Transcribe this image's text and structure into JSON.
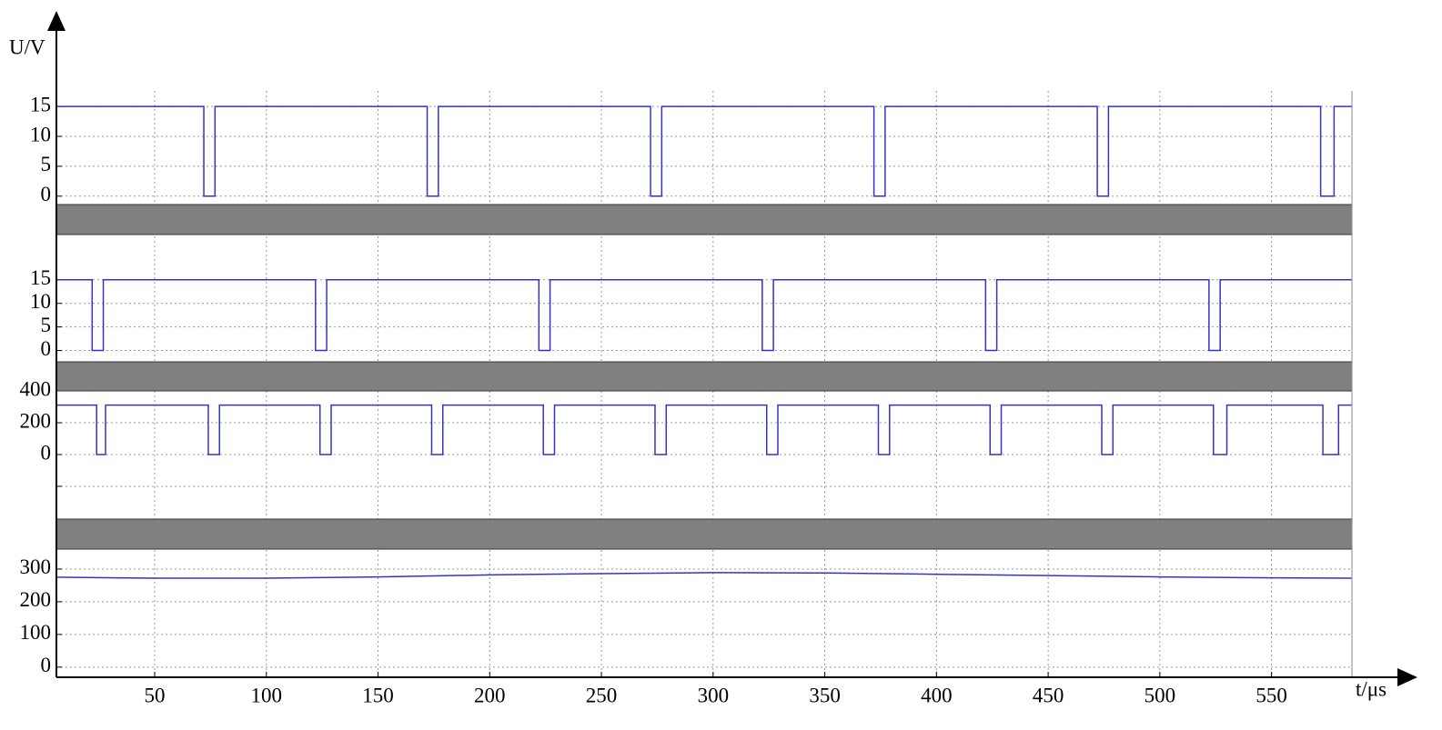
{
  "chart_data": [
    {
      "type": "line",
      "ylabel": "U/V",
      "color": "#3333cc",
      "grid": true,
      "xlim": [
        6,
        586
      ],
      "ylim": [
        -1.4,
        17.6
      ],
      "yticks": [
        0,
        5,
        10,
        15
      ],
      "x": [
        6,
        72,
        72,
        77,
        77,
        172,
        172,
        177,
        177,
        272,
        272,
        277,
        277,
        372,
        372,
        377,
        377,
        472,
        472,
        477,
        477,
        572,
        572,
        578,
        578,
        586
      ],
      "values": [
        15,
        15,
        0,
        0,
        15,
        15,
        0,
        0,
        15,
        15,
        0,
        0,
        15,
        15,
        0,
        0,
        15,
        15,
        0,
        0,
        15,
        15,
        0,
        0,
        15,
        15
      ]
    },
    {
      "type": "line",
      "color": "#3333cc",
      "grid": true,
      "xlim": [
        6,
        586
      ],
      "ylim": [
        -2.4,
        24.6
      ],
      "yticks": [
        0,
        5,
        10,
        15
      ],
      "x": [
        6,
        22,
        22,
        27,
        27,
        122,
        122,
        127,
        127,
        222,
        222,
        227,
        227,
        322,
        322,
        327,
        327,
        422,
        422,
        427,
        427,
        522,
        522,
        527,
        527,
        586
      ],
      "values": [
        15,
        15,
        0,
        0,
        15,
        15,
        0,
        0,
        15,
        15,
        0,
        0,
        15,
        15,
        0,
        0,
        15,
        15,
        0,
        0,
        15,
        15,
        0,
        0,
        15,
        15
      ]
    },
    {
      "type": "line",
      "color": "#3333cc",
      "grid": true,
      "xlim": [
        6,
        586
      ],
      "ylim": [
        -406,
        400
      ],
      "yticks": [
        {
          "value": -200,
          "label": null
        },
        0,
        200,
        400
      ],
      "x": [
        6,
        24,
        24,
        28,
        28,
        74,
        74,
        79,
        79,
        124,
        124,
        129,
        129,
        174,
        174,
        179,
        179,
        224,
        224,
        229,
        229,
        274,
        274,
        279,
        279,
        324,
        324,
        329,
        329,
        374,
        374,
        379,
        379,
        424,
        424,
        429,
        429,
        474,
        474,
        479,
        479,
        524,
        524,
        530,
        530,
        573,
        573,
        580,
        580,
        586
      ],
      "values": [
        311,
        311,
        0,
        0,
        311,
        311,
        0,
        0,
        311,
        311,
        0,
        0,
        311,
        311,
        0,
        0,
        311,
        311,
        0,
        0,
        311,
        311,
        0,
        0,
        311,
        311,
        0,
        0,
        311,
        311,
        0,
        0,
        311,
        311,
        0,
        0,
        311,
        311,
        0,
        0,
        311,
        311,
        0,
        0,
        311,
        311,
        0,
        0,
        311,
        311
      ]
    },
    {
      "type": "line",
      "xlabel": "t/μs",
      "color": "#3333cc",
      "grid": true,
      "xlim": [
        6,
        586
      ],
      "ylim": [
        -31,
        361
      ],
      "yticks": [
        0,
        100,
        200,
        300
      ],
      "xticks": [
        50,
        100,
        150,
        200,
        250,
        300,
        350,
        400,
        450,
        500,
        550
      ],
      "x": [
        6,
        50,
        100,
        150,
        200,
        250,
        300,
        350,
        400,
        450,
        500,
        550,
        586
      ],
      "values": [
        275,
        272,
        272,
        276,
        282,
        286,
        289,
        288,
        284,
        280,
        276,
        273,
        272
      ]
    }
  ]
}
